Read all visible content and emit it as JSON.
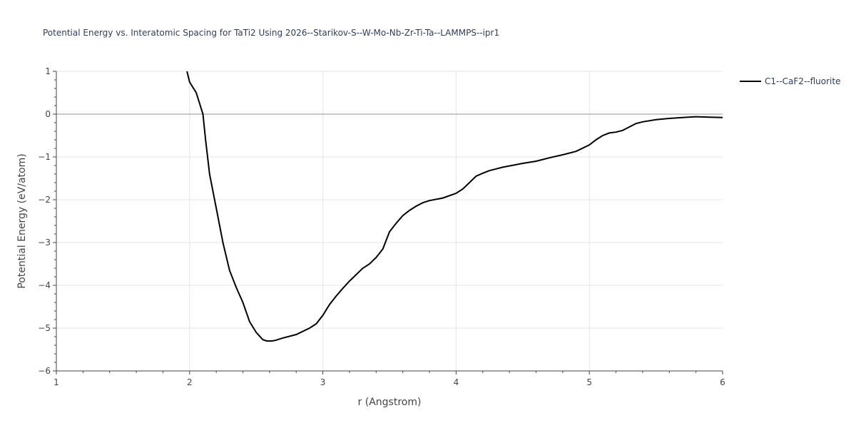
{
  "chart_data": {
    "type": "line",
    "title": "Potential Energy vs. Interatomic Spacing for TaTi2 Using 2026--Starikov-S--W-Mo-Nb-Zr-Ti-Ta--LAMMPS--ipr1",
    "xlabel": "r (Angstrom)",
    "ylabel": "Potential Energy (eV/atom)",
    "xlim": [
      1,
      6
    ],
    "ylim": [
      -6,
      1
    ],
    "xticks": [
      1,
      2,
      3,
      4,
      5,
      6
    ],
    "yticks": [
      1,
      0,
      -1,
      -2,
      -3,
      -4,
      -5,
      -6
    ],
    "ytick_labels": [
      "1",
      "0",
      "−1",
      "−2",
      "−3",
      "−4",
      "−5",
      "−6"
    ],
    "grid": true,
    "legend_position": "top-right",
    "series": [
      {
        "name": "C1--CaF2--fluorite",
        "color": "#000000",
        "x": [
          1.98,
          2.0,
          2.05,
          2.1,
          2.12,
          2.15,
          2.2,
          2.25,
          2.3,
          2.35,
          2.4,
          2.45,
          2.5,
          2.55,
          2.58,
          2.62,
          2.65,
          2.7,
          2.8,
          2.9,
          2.95,
          3.0,
          3.05,
          3.1,
          3.15,
          3.2,
          3.25,
          3.3,
          3.35,
          3.4,
          3.45,
          3.5,
          3.55,
          3.6,
          3.65,
          3.7,
          3.75,
          3.8,
          3.9,
          4.0,
          4.05,
          4.1,
          4.15,
          4.2,
          4.25,
          4.3,
          4.35,
          4.4,
          4.5,
          4.6,
          4.7,
          4.8,
          4.9,
          5.0,
          5.05,
          5.1,
          5.15,
          5.2,
          5.25,
          5.3,
          5.35,
          5.4,
          5.5,
          5.6,
          5.7,
          5.8,
          5.9,
          6.0
        ],
        "y": [
          1.0,
          0.75,
          0.5,
          0.0,
          -0.6,
          -1.4,
          -2.2,
          -3.0,
          -3.65,
          -4.05,
          -4.4,
          -4.85,
          -5.1,
          -5.27,
          -5.3,
          -5.3,
          -5.28,
          -5.23,
          -5.15,
          -5.0,
          -4.9,
          -4.7,
          -4.45,
          -4.25,
          -4.07,
          -3.9,
          -3.75,
          -3.6,
          -3.5,
          -3.35,
          -3.15,
          -2.75,
          -2.55,
          -2.37,
          -2.25,
          -2.15,
          -2.07,
          -2.02,
          -1.96,
          -1.85,
          -1.75,
          -1.6,
          -1.45,
          -1.38,
          -1.32,
          -1.28,
          -1.24,
          -1.21,
          -1.15,
          -1.1,
          -1.02,
          -0.95,
          -0.87,
          -0.72,
          -0.6,
          -0.5,
          -0.44,
          -0.42,
          -0.38,
          -0.3,
          -0.22,
          -0.18,
          -0.13,
          -0.1,
          -0.08,
          -0.06,
          -0.07,
          -0.08
        ]
      }
    ]
  }
}
